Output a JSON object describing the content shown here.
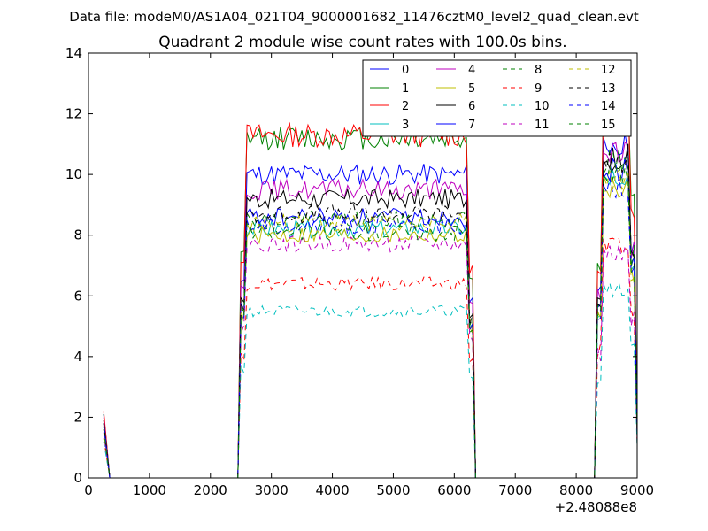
{
  "chart_data": {
    "type": "line",
    "supertitle": "Data file: modeM0/AS1A04_021T04_9000001682_11476cztM0_level2_quad_clean.evt",
    "title": "Quadrant 2 module wise count rates with 100.0s bins.",
    "xlabel": "",
    "ylabel": "",
    "x_offset_label": "+2.48088e8",
    "xlim": [
      0,
      9000
    ],
    "ylim": [
      0,
      14
    ],
    "x_ticks": [
      0,
      1000,
      2000,
      3000,
      4000,
      5000,
      6000,
      7000,
      8000,
      9000
    ],
    "y_ticks": [
      0,
      2,
      4,
      6,
      8,
      10,
      12,
      14
    ],
    "x_tick_labels": [
      "0",
      "1000",
      "2000",
      "3000",
      "4000",
      "5000",
      "6000",
      "7000",
      "8000",
      "9000"
    ],
    "y_tick_labels": [
      "0",
      "2",
      "4",
      "6",
      "8",
      "10",
      "12",
      "14"
    ],
    "grid": false,
    "legend_position": "top-right",
    "segments": [
      {
        "x_start": 250,
        "x_end": 350,
        "step": 100
      },
      {
        "x_start": 350,
        "x_end": 2450,
        "step": 100
      },
      {
        "x_start": 2450,
        "x_end": 6350,
        "step": 50
      },
      {
        "x_start": 6350,
        "x_end": 8300,
        "step": 100
      },
      {
        "x_start": 8300,
        "x_end": 9000,
        "step": 50
      }
    ],
    "series": [
      {
        "name": "0",
        "color": "#0000ff",
        "style": "solid",
        "level": 10.0,
        "peak": 11.0,
        "start": 2.1
      },
      {
        "name": "1",
        "color": "#008000",
        "style": "solid",
        "level": 11.2,
        "peak": 12.9,
        "start": 2.1
      },
      {
        "name": "2",
        "color": "#ff0000",
        "style": "solid",
        "level": 11.3,
        "peak": 12.6,
        "start": 2.2
      },
      {
        "name": "3",
        "color": "#00bfbf",
        "style": "solid",
        "level": 8.2,
        "peak": 10.0,
        "start": 1.7
      },
      {
        "name": "4",
        "color": "#bf00bf",
        "style": "solid",
        "level": 9.5,
        "peak": 10.8,
        "start": 2.0
      },
      {
        "name": "5",
        "color": "#bfbf00",
        "style": "solid",
        "level": 8.0,
        "peak": 9.6,
        "start": 1.6
      },
      {
        "name": "6",
        "color": "#000000",
        "style": "solid",
        "level": 9.2,
        "peak": 10.6,
        "start": 1.9
      },
      {
        "name": "7",
        "color": "#0000ff",
        "style": "solid",
        "level": 8.6,
        "peak": 10.2,
        "start": 1.8
      },
      {
        "name": "8",
        "color": "#008000",
        "style": "dashed",
        "level": 8.5,
        "peak": 10.4,
        "start": 1.8
      },
      {
        "name": "9",
        "color": "#ff0000",
        "style": "dashed",
        "level": 6.4,
        "peak": 7.6,
        "start": 1.3
      },
      {
        "name": "10",
        "color": "#00bfbf",
        "style": "dashed",
        "level": 5.5,
        "peak": 6.2,
        "start": 1.2
      },
      {
        "name": "11",
        "color": "#bf00bf",
        "style": "dashed",
        "level": 7.7,
        "peak": 7.4,
        "start": 1.5
      },
      {
        "name": "12",
        "color": "#bfbf00",
        "style": "dashed",
        "level": 8.4,
        "peak": 9.8,
        "start": 1.7
      },
      {
        "name": "13",
        "color": "#000000",
        "style": "dashed",
        "level": 8.7,
        "peak": 10.4,
        "start": 1.8
      },
      {
        "name": "14",
        "color": "#0000ff",
        "style": "dashed",
        "level": 8.3,
        "peak": 9.6,
        "start": 1.7
      },
      {
        "name": "15",
        "color": "#008000",
        "style": "dashed",
        "level": 8.1,
        "peak": 10.0,
        "start": 1.6
      }
    ]
  }
}
